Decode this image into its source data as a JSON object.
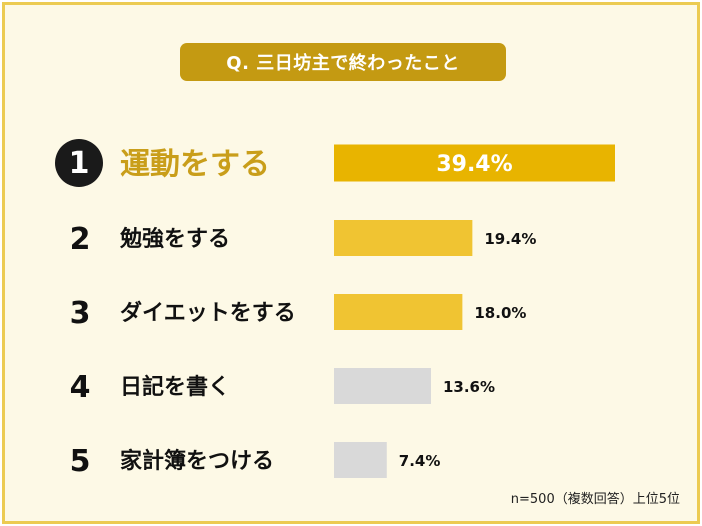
{
  "title": "Q. 三日坊主で終わったこと",
  "note": "n=500（複数回答）上位5位",
  "colors": {
    "frame_border": "#eccb52",
    "frame_fill": "#fdf9e6",
    "title_fill": "#c49a12",
    "top_bar": "#e8b400",
    "mid_bar": "#f0c432",
    "low_bar": "#d9d9d9",
    "top_label": "#c99e1a",
    "text": "#111111"
  },
  "chart_data": {
    "type": "bar",
    "orientation": "horizontal",
    "xlim": [
      0,
      40
    ],
    "categories": [
      "運動をする",
      "勉強をする",
      "ダイエットをする",
      "日記を書く",
      "家計簿をつける"
    ],
    "ranks": [
      "1",
      "2",
      "3",
      "4",
      "5"
    ],
    "values": [
      39.4,
      19.4,
      18.0,
      13.6,
      7.4
    ],
    "value_labels": [
      "39.4%",
      "19.4%",
      "18.0%",
      "13.6%",
      "7.4%"
    ]
  }
}
